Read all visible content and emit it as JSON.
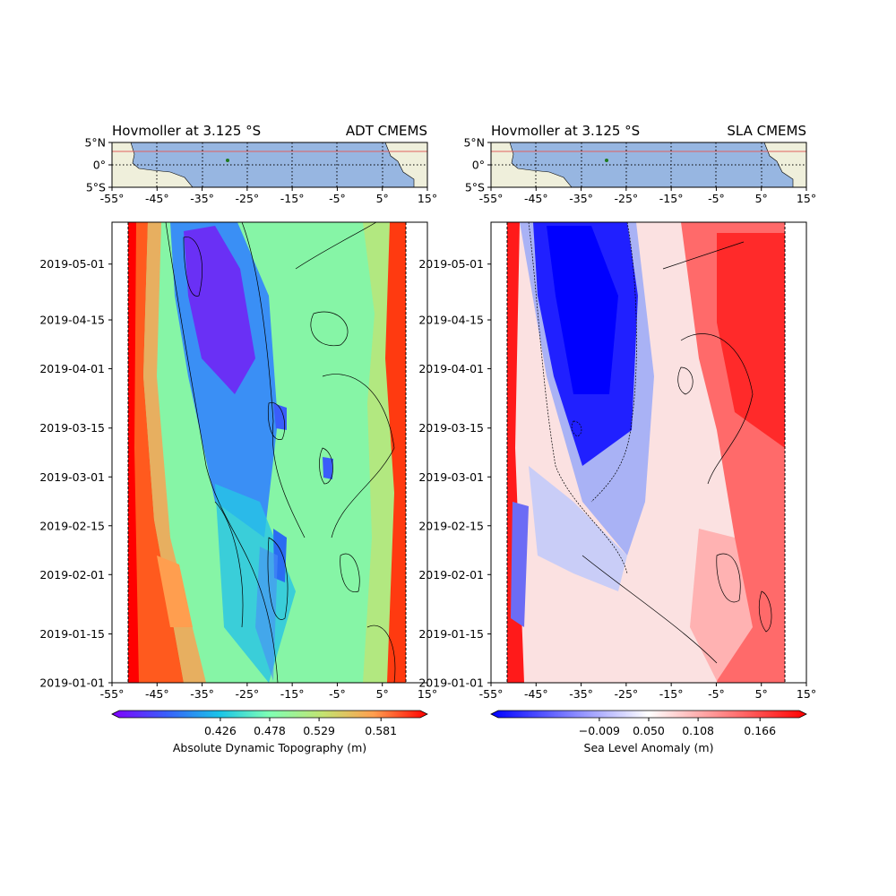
{
  "chart_data": [
    {
      "type": "heatmap",
      "panel": "left",
      "title_left": "Hovmoller at 3.125 °S",
      "title_right": "ADT CMEMS",
      "x_ticks": [
        "-55°",
        "-45°",
        "-35°",
        "-25°",
        "-15°",
        "-5°",
        "5°",
        "15°"
      ],
      "x_range": [
        -55,
        15
      ],
      "y_ticks": [
        "2019-01-01",
        "2019-01-15",
        "2019-02-01",
        "2019-02-15",
        "2019-03-01",
        "2019-03-15",
        "2019-04-01",
        "2019-04-15",
        "2019-05-01"
      ],
      "y_range": [
        "2019-01-01",
        "2019-05-13"
      ],
      "colorbar_ticks": [
        "0.426",
        "0.478",
        "0.529",
        "0.581"
      ],
      "colorbar_label": "Absolute Dynamic Topography (m)",
      "colormap": "rainbow",
      "map_inset": {
        "lat_ticks": [
          "5°N",
          "0°",
          "5°S"
        ],
        "lon_ticks": [
          "-55°",
          "-45°",
          "-35°",
          "-25°",
          "-15°",
          "-5°",
          "5°",
          "15°"
        ]
      }
    },
    {
      "type": "heatmap",
      "panel": "right",
      "title_left": "Hovmoller at 3.125 °S",
      "title_right": "SLA CMEMS",
      "x_ticks": [
        "-55°",
        "-45°",
        "-35°",
        "-25°",
        "-15°",
        "-5°",
        "5°",
        "15°"
      ],
      "x_range": [
        -55,
        15
      ],
      "y_ticks": [
        "2019-01-01",
        "2019-01-15",
        "2019-02-01",
        "2019-02-15",
        "2019-03-01",
        "2019-03-15",
        "2019-04-01",
        "2019-04-15",
        "2019-05-01"
      ],
      "y_range": [
        "2019-01-01",
        "2019-05-13"
      ],
      "colorbar_ticks": [
        "−0.009",
        "0.050",
        "0.108",
        "0.166"
      ],
      "colorbar_label": "Sea Level Anomaly (m)",
      "colormap": "bwr",
      "map_inset": {
        "lat_ticks": [
          "5°N",
          "0°",
          "5°S"
        ],
        "lon_ticks": [
          "-55°",
          "-45°",
          "-35°",
          "-25°",
          "-15°",
          "-5°",
          "5°",
          "15°"
        ]
      }
    }
  ],
  "colors": {
    "ocean": "#97b6e1",
    "land": "#efefdb",
    "transect_line": "#e0605f",
    "point_marker": "#1f7a1f"
  }
}
